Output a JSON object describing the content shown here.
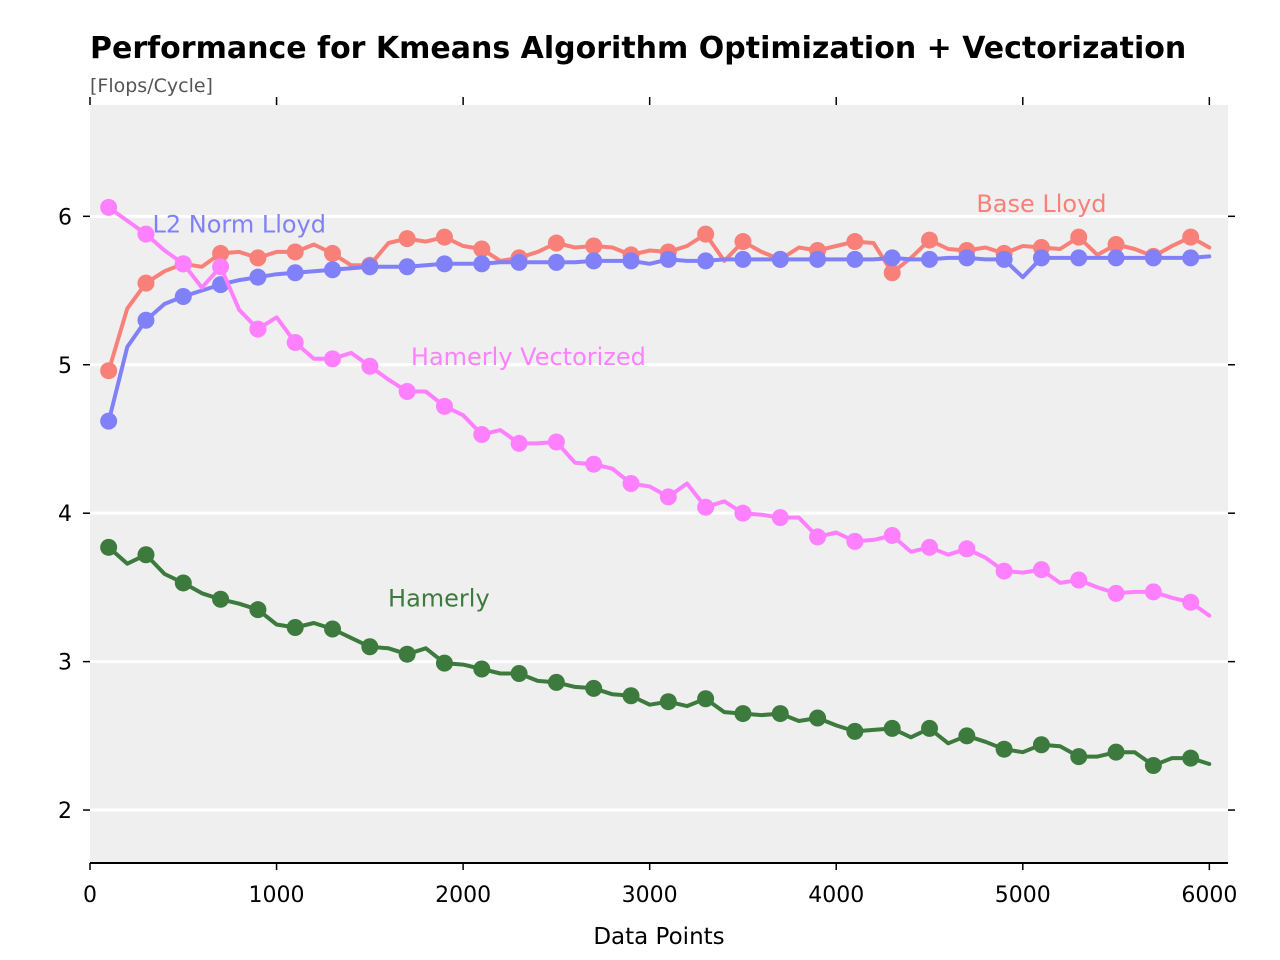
{
  "chart_data": {
    "type": "line",
    "title": "Performance for Kmeans Algorithm Optimization + Vectorization",
    "subtitle": "[Flops/Cycle]",
    "xlabel": "Data Points",
    "ylabel": "",
    "xlim": [
      0,
      6100
    ],
    "ylim": [
      1.65,
      6.75
    ],
    "xticks": [
      0,
      1000,
      2000,
      3000,
      4000,
      5000,
      6000
    ],
    "xtick_labels": [
      "0",
      "1000",
      "2000",
      "3000",
      "4000",
      "5000",
      "6000"
    ],
    "yticks": [
      2,
      3,
      4,
      5,
      6
    ],
    "ytick_labels": [
      "2",
      "3",
      "4",
      "5",
      "6"
    ],
    "grid": "horizontal",
    "legend": "inline labels",
    "x": [
      100,
      200,
      300,
      400,
      500,
      600,
      700,
      800,
      900,
      1000,
      1100,
      1200,
      1300,
      1400,
      1500,
      1600,
      1700,
      1800,
      1900,
      2000,
      2100,
      2200,
      2300,
      2400,
      2500,
      2600,
      2700,
      2800,
      2900,
      3000,
      3100,
      3200,
      3300,
      3400,
      3500,
      3600,
      3700,
      3800,
      3900,
      4000,
      4100,
      4200,
      4300,
      4400,
      4500,
      4600,
      4700,
      4800,
      4900,
      5000,
      5100,
      5200,
      5300,
      5400,
      5500,
      5600,
      5700,
      5800,
      5900,
      6000
    ],
    "series": [
      {
        "name": "Base Lloyd",
        "color": "#f88079",
        "label_x": 5100,
        "label_y": 6.03,
        "values": [
          4.96,
          5.38,
          5.55,
          5.63,
          5.68,
          5.66,
          5.75,
          5.76,
          5.72,
          5.76,
          5.76,
          5.81,
          5.75,
          5.67,
          5.67,
          5.82,
          5.85,
          5.83,
          5.86,
          5.8,
          5.78,
          5.7,
          5.72,
          5.76,
          5.82,
          5.79,
          5.8,
          5.79,
          5.74,
          5.77,
          5.76,
          5.8,
          5.88,
          5.7,
          5.83,
          5.76,
          5.71,
          5.79,
          5.77,
          5.8,
          5.83,
          5.82,
          5.62,
          5.72,
          5.84,
          5.78,
          5.77,
          5.79,
          5.75,
          5.8,
          5.79,
          5.78,
          5.86,
          5.74,
          5.81,
          5.78,
          5.73,
          5.8,
          5.86,
          5.79
        ]
      },
      {
        "name": "L2 Norm Lloyd",
        "color": "#8080f8",
        "label_x": 800,
        "label_y": 5.89,
        "values": [
          4.62,
          5.12,
          5.3,
          5.41,
          5.46,
          5.5,
          5.54,
          5.57,
          5.59,
          5.61,
          5.62,
          5.63,
          5.64,
          5.65,
          5.66,
          5.66,
          5.66,
          5.67,
          5.68,
          5.68,
          5.68,
          5.69,
          5.69,
          5.69,
          5.69,
          5.69,
          5.7,
          5.7,
          5.7,
          5.68,
          5.71,
          5.7,
          5.7,
          5.71,
          5.71,
          5.71,
          5.71,
          5.71,
          5.71,
          5.71,
          5.71,
          5.71,
          5.72,
          5.71,
          5.71,
          5.72,
          5.72,
          5.71,
          5.71,
          5.59,
          5.72,
          5.72,
          5.72,
          5.72,
          5.72,
          5.72,
          5.72,
          5.72,
          5.72,
          5.73
        ]
      },
      {
        "name": "Hamerly Vectorized",
        "color": "#ff80ff",
        "label_x": 2350,
        "label_y": 5.0,
        "values": [
          6.06,
          5.97,
          5.88,
          5.77,
          5.68,
          5.52,
          5.66,
          5.37,
          5.24,
          5.32,
          5.15,
          5.04,
          5.04,
          5.08,
          4.99,
          4.9,
          4.82,
          4.82,
          4.72,
          4.66,
          4.53,
          4.56,
          4.47,
          4.47,
          4.48,
          4.34,
          4.33,
          4.3,
          4.2,
          4.18,
          4.11,
          4.2,
          4.04,
          4.08,
          4.0,
          3.99,
          3.97,
          3.97,
          3.84,
          3.87,
          3.81,
          3.82,
          3.85,
          3.74,
          3.77,
          3.72,
          3.76,
          3.7,
          3.61,
          3.6,
          3.62,
          3.53,
          3.55,
          3.5,
          3.46,
          3.47,
          3.47,
          3.43,
          3.4,
          3.31
        ]
      },
      {
        "name": "Hamerly",
        "color": "#3d7a3d",
        "label_x": 1870,
        "label_y": 3.37,
        "values": [
          3.77,
          3.66,
          3.72,
          3.59,
          3.53,
          3.46,
          3.42,
          3.39,
          3.35,
          3.25,
          3.23,
          3.26,
          3.22,
          3.16,
          3.1,
          3.09,
          3.05,
          3.09,
          2.99,
          2.98,
          2.95,
          2.92,
          2.92,
          2.87,
          2.86,
          2.83,
          2.82,
          2.78,
          2.77,
          2.71,
          2.73,
          2.7,
          2.75,
          2.66,
          2.65,
          2.64,
          2.65,
          2.6,
          2.62,
          2.57,
          2.53,
          2.54,
          2.55,
          2.49,
          2.55,
          2.45,
          2.5,
          2.46,
          2.41,
          2.39,
          2.44,
          2.43,
          2.36,
          2.36,
          2.39,
          2.39,
          2.3,
          2.35,
          2.35,
          2.31
        ]
      }
    ]
  }
}
